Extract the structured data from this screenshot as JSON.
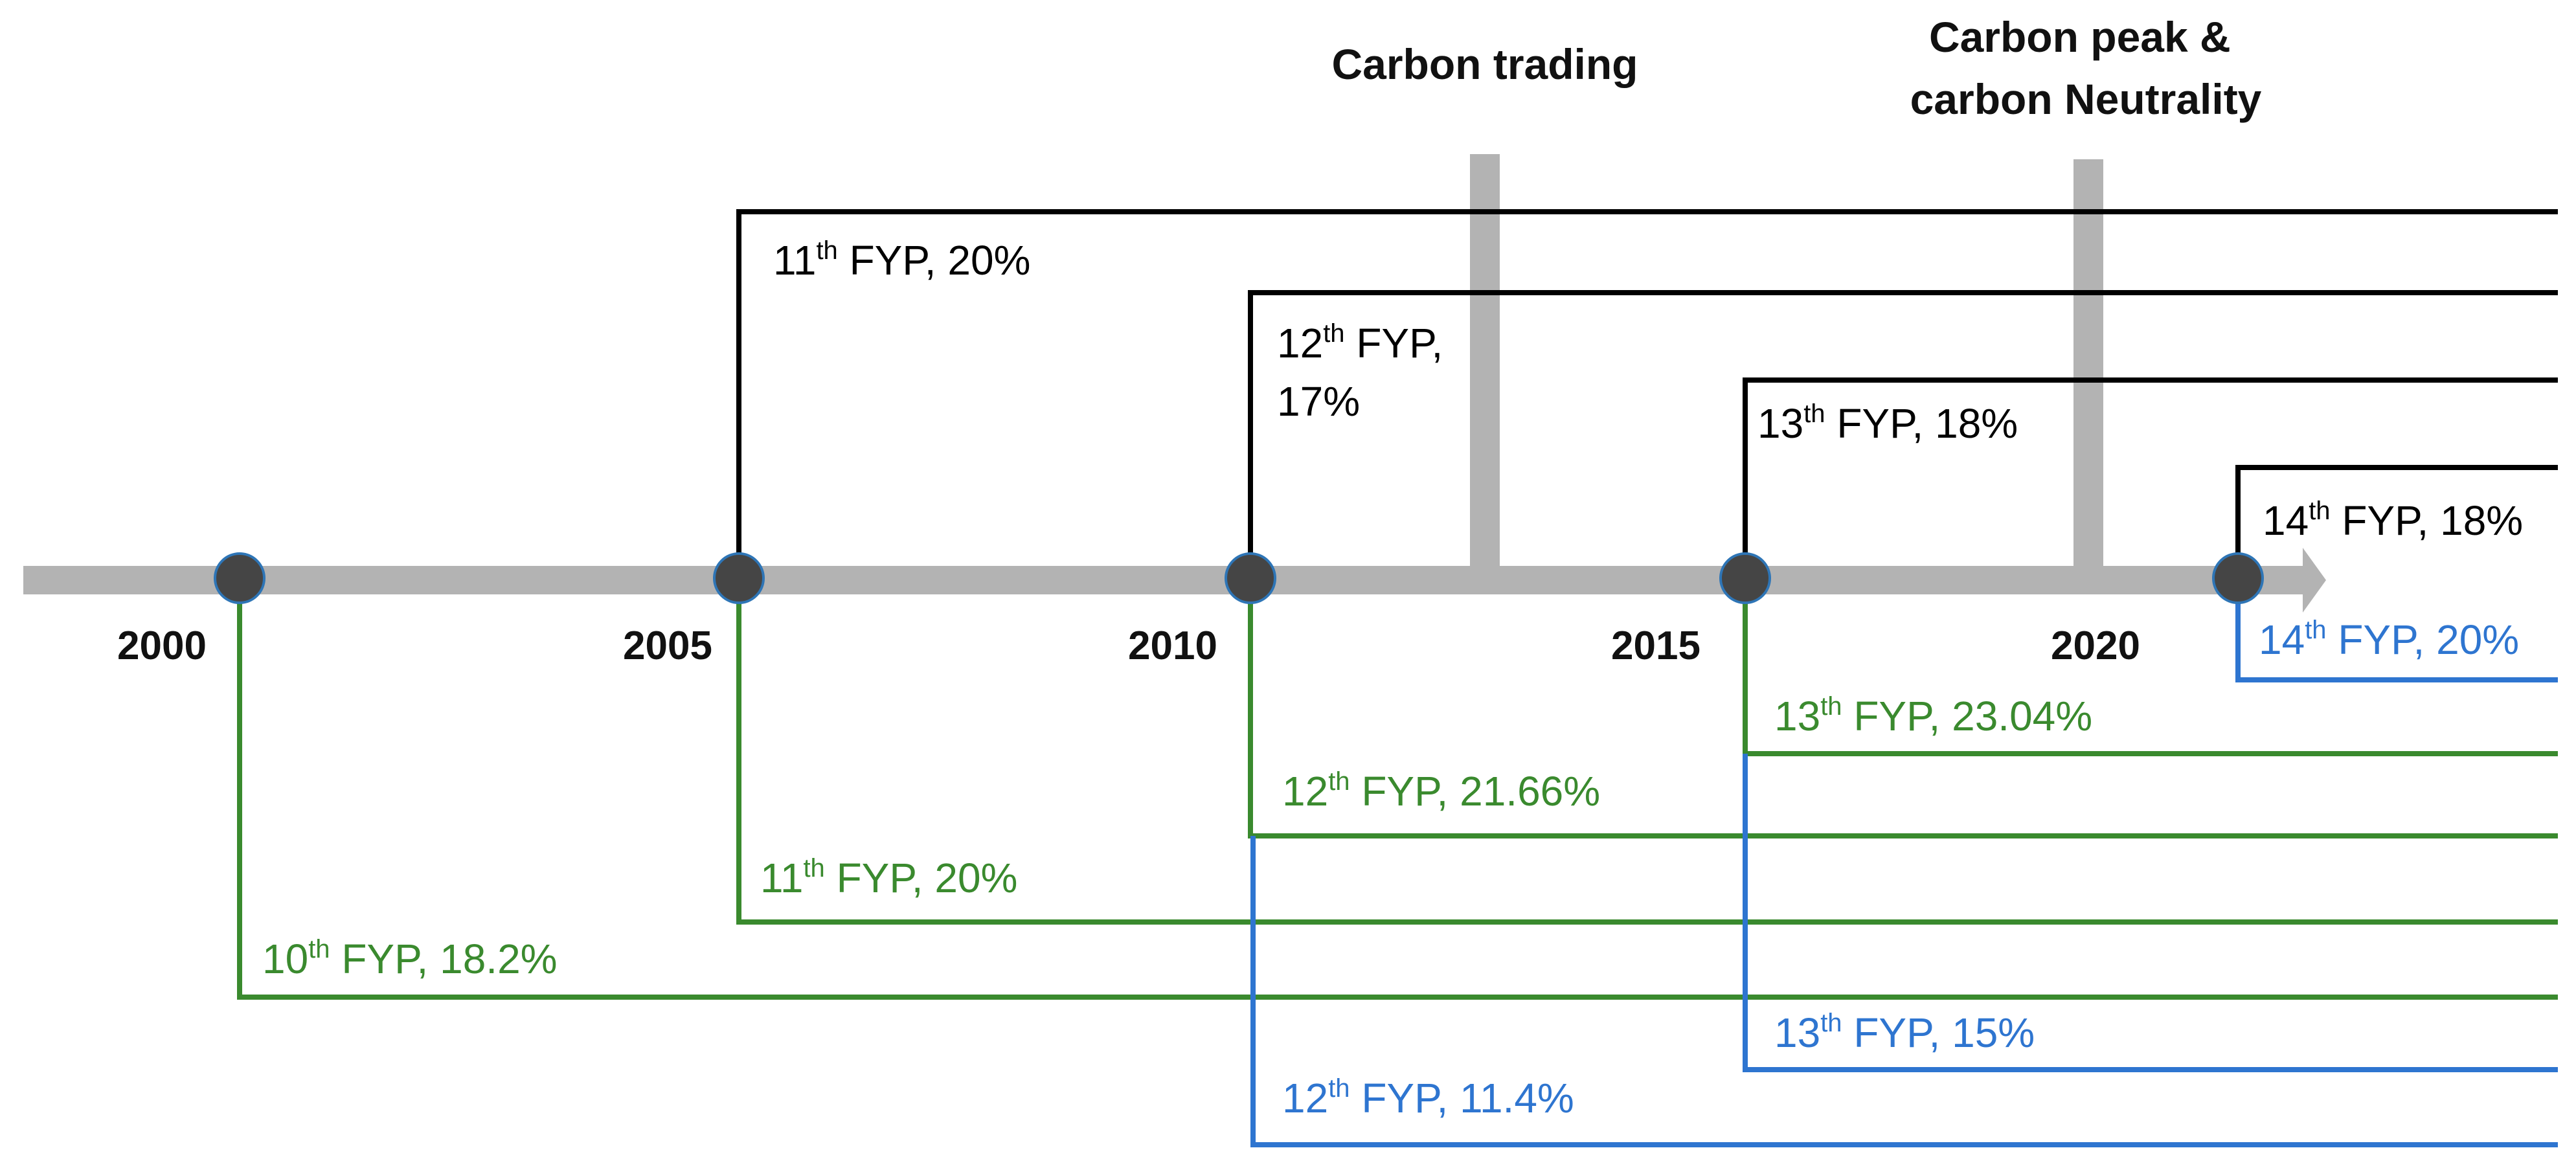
{
  "timeline": {
    "years": [
      "2000",
      "2005",
      "2010",
      "2015",
      "2020"
    ],
    "axis_color": "#b3b3b3",
    "node_color": "#454545",
    "node_outline_color": "#2e75b6"
  },
  "events": [
    {
      "id": "carbon-trading",
      "lines": [
        "Carbon trading"
      ]
    },
    {
      "id": "carbon-peak",
      "lines": [
        "Carbon peak &",
        "carbon Neutrality"
      ]
    }
  ],
  "plans": [
    {
      "id": "black-11",
      "color": "#000000",
      "ordinal": "11",
      "suffix": "th",
      "rest": " FYP, 20%"
    },
    {
      "id": "black-12",
      "color": "#000000",
      "ordinal": "12",
      "suffix": "th",
      "rest": " FYP,",
      "line2": "17%"
    },
    {
      "id": "black-13",
      "color": "#000000",
      "ordinal": "13",
      "suffix": "th",
      "rest": " FYP, 18%"
    },
    {
      "id": "black-14",
      "color": "#000000",
      "ordinal": "14",
      "suffix": "th",
      "rest": " FYP, 18%"
    },
    {
      "id": "blue-14",
      "color": "#2e75d0",
      "ordinal": "14",
      "suffix": "th",
      "rest": " FYP, 20%"
    },
    {
      "id": "green-13",
      "color": "#3a8a2e",
      "ordinal": "13",
      "suffix": "th",
      "rest": " FYP, 23.04%"
    },
    {
      "id": "green-12",
      "color": "#3a8a2e",
      "ordinal": "12",
      "suffix": "th",
      "rest": " FYP, 21.66%"
    },
    {
      "id": "green-11",
      "color": "#3a8a2e",
      "ordinal": "11",
      "suffix": "th",
      "rest": " FYP, 20%"
    },
    {
      "id": "green-10",
      "color": "#3a8a2e",
      "ordinal": "10",
      "suffix": "th",
      "rest": " FYP, 18.2%"
    },
    {
      "id": "blue-13",
      "color": "#2e75d0",
      "ordinal": "13",
      "suffix": "th",
      "rest": " FYP, 15%"
    },
    {
      "id": "blue-12",
      "color": "#2e75d0",
      "ordinal": "12",
      "suffix": "th",
      "rest": " FYP, 11.4%"
    }
  ]
}
